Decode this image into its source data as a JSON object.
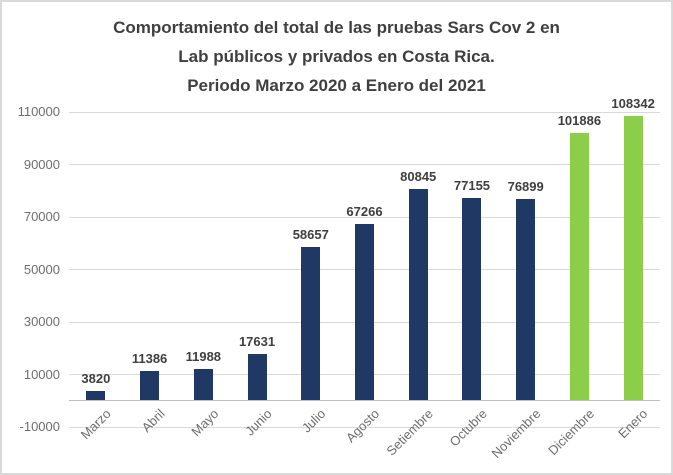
{
  "chart_data": {
    "type": "bar",
    "title": "Comportamiento del total de las pruebas Sars Cov 2 en Lab públicos y privados en Costa Rica. Periodo Marzo 2020 a Enero del 2021",
    "title_lines": [
      "Comportamiento del total de las pruebas Sars Cov 2 en",
      "Lab públicos y privados en Costa Rica.",
      "Periodo Marzo 2020 a Enero del 2021"
    ],
    "categories": [
      "Marzo",
      "Abril",
      "Mayo",
      "Junio",
      "Julio",
      "Agosto",
      "Setiembre",
      "Octubre",
      "Noviembre",
      "Diciembre",
      "Enero"
    ],
    "values": [
      3820,
      11386,
      11988,
      17631,
      58657,
      67266,
      80845,
      77155,
      76899,
      101886,
      108342
    ],
    "highlight_indices": [
      9,
      10
    ],
    "yticks": [
      110000,
      90000,
      70000,
      50000,
      30000,
      10000,
      -10000
    ],
    "ylim": [
      -10000,
      110000
    ],
    "grid": true,
    "legend": "none",
    "xlabel": "",
    "ylabel": "",
    "data_labels_shown": true,
    "x_label_rotation_deg": -45,
    "colors": {
      "bar_default": "#1F3864",
      "bar_highlight": "#8CCE4A",
      "title": "#3F3F3F",
      "data_label": "#3F3F3F",
      "axis_text": "#6E6E6E",
      "gridline": "#D9D9D9",
      "axis_line": "#BFBFBF",
      "chart_border": "#D9D9D9",
      "background": "#FFFFFF"
    }
  }
}
